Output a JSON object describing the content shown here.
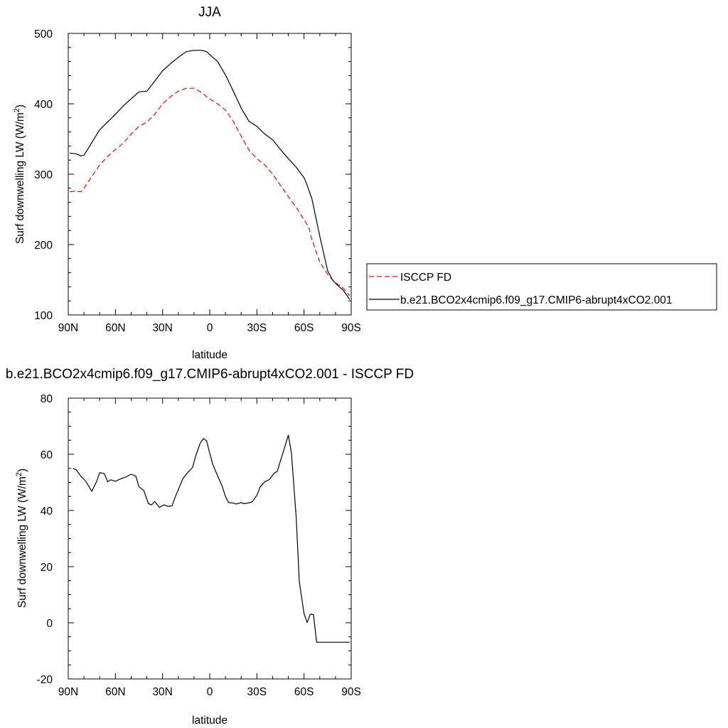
{
  "chart_data": [
    {
      "type": "line",
      "title": "JJA",
      "xlabel": "latitude",
      "ylabel": "Surf downwelling LW (W/m²)",
      "ylabel_main": "Surf downwelling LW (W/m",
      "ylabel_sup": "2",
      "ylabel_tail": ")",
      "ylim": [
        100,
        500
      ],
      "xlim": [
        -90,
        90
      ],
      "x_direction": "90N to 90S",
      "yticks": [
        "100",
        "200",
        "300",
        "400",
        "500"
      ],
      "xticks": [
        "90N",
        "60N",
        "30N",
        "0",
        "30S",
        "60S",
        "90S"
      ],
      "legend_position": "right",
      "series": [
        {
          "name": "ISCCP FD",
          "color": "#ff0000",
          "dash": "dashed",
          "x": [
            89,
            85,
            82,
            80,
            75,
            70,
            65,
            60,
            55,
            50,
            45,
            40,
            35,
            30,
            25,
            20,
            15,
            10,
            5,
            2,
            0,
            -5,
            -10,
            -15,
            -20,
            -25,
            -30,
            -35,
            -40,
            -45,
            -50,
            -55,
            -60,
            -63,
            -65,
            -70,
            -75,
            -78,
            -80,
            -85,
            -89
          ],
          "y": [
            275,
            276,
            275,
            280,
            297,
            313,
            325,
            335,
            344,
            357,
            368,
            374,
            385,
            400,
            410,
            418,
            422,
            422,
            416,
            410,
            407,
            400,
            391,
            375,
            354,
            334,
            322,
            313,
            300,
            284,
            268,
            253,
            235,
            225,
            207,
            175,
            158,
            150,
            146,
            138,
            127
          ]
        },
        {
          "name": "b.e21.BCO2x4cmip6.f09_g17.CMIP6-abrupt4xCO2.001",
          "color": "#000000",
          "dash": "solid",
          "x": [
            89,
            85,
            82,
            80,
            75,
            70,
            65,
            60,
            55,
            50,
            45,
            40,
            35,
            30,
            25,
            20,
            15,
            10,
            5,
            2,
            0,
            -5,
            -10,
            -15,
            -20,
            -25,
            -30,
            -35,
            -40,
            -45,
            -50,
            -55,
            -60,
            -62,
            -65,
            -70,
            -75,
            -78,
            -80,
            -85,
            -89
          ],
          "y": [
            330,
            329,
            326,
            327,
            345,
            363,
            374,
            385,
            397,
            407,
            417,
            418,
            432,
            447,
            457,
            466,
            474,
            476,
            476,
            474,
            470,
            460,
            441,
            418,
            394,
            375,
            368,
            357,
            349,
            335,
            322,
            310,
            295,
            284,
            265,
            212,
            163,
            150,
            145,
            135,
            122
          ]
        }
      ]
    },
    {
      "type": "line",
      "title": "b.e21.BCO2x4cmip6.f09_g17.CMIP6-abrupt4xCO2.001 - ISCCP FD",
      "xlabel": "latitude",
      "ylabel": "Surf downwelling LW (W/m²)",
      "ylabel_main": "Surf downwelling LW (W/m",
      "ylabel_sup": "2",
      "ylabel_tail": ")",
      "ylim": [
        -20,
        80
      ],
      "xlim": [
        -90,
        90
      ],
      "x_direction": "90N to 90S",
      "yticks": [
        "-20",
        "0",
        "20",
        "40",
        "60",
        "80"
      ],
      "xticks": [
        "90N",
        "60N",
        "30N",
        "0",
        "30S",
        "60S",
        "90S"
      ],
      "series": [
        {
          "name": "",
          "color": "#000000",
          "dash": "solid",
          "x": [
            87,
            85,
            82,
            79,
            75,
            72,
            70,
            67,
            65,
            63,
            60,
            57,
            53,
            50,
            47,
            45,
            42,
            39,
            37,
            35,
            32,
            29,
            27,
            24,
            22,
            20,
            17,
            14,
            11,
            9,
            6,
            4,
            2,
            0,
            -2,
            -5,
            -8,
            -10,
            -12,
            -15,
            -17,
            -20,
            -22,
            -25,
            -27,
            -30,
            -32,
            -35,
            -38,
            -41,
            -43,
            -45,
            -47,
            -50,
            -52,
            -55,
            -57,
            -60,
            -62,
            -64,
            -66,
            -68,
            -70,
            -73,
            -76,
            -78,
            -80,
            -82,
            -84,
            -87,
            -89
          ],
          "y": [
            55,
            54.5,
            52.2,
            50.5,
            46.8,
            50.3,
            53.5,
            53.1,
            50.2,
            50.9,
            50.4,
            51.2,
            52.0,
            52.9,
            52.2,
            48.4,
            47.2,
            42.4,
            42.0,
            43.2,
            41.1,
            42.0,
            41.5,
            41.6,
            44.7,
            47.4,
            51.4,
            53.5,
            55.2,
            59.3,
            64.0,
            65.6,
            64.8,
            60.4,
            56.3,
            52.3,
            48.5,
            45.0,
            42.8,
            42.6,
            42.3,
            42.8,
            42.4,
            42.7,
            43.1,
            45.4,
            48.3,
            50.2,
            51.0,
            53.3,
            53.9,
            57.7,
            61.3,
            66.8,
            60.4,
            37.6,
            14.6,
            3.2,
            0.1,
            3.1,
            2.9,
            -6.9,
            -6.9,
            -6.9,
            -6.9,
            -6.9,
            -6.9,
            -6.9,
            -6.9,
            -6.9,
            -6.9
          ]
        }
      ]
    }
  ]
}
